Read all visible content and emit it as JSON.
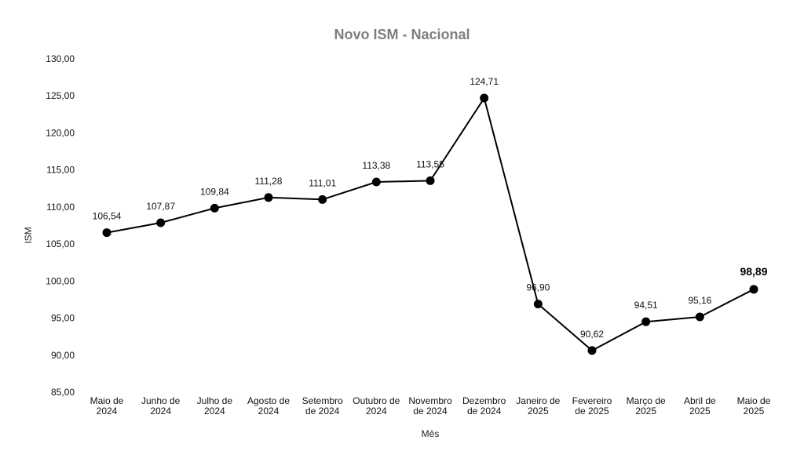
{
  "chart_data": {
    "type": "line",
    "title": "Novo ISM - Nacional",
    "xlabel": "Mês",
    "ylabel": "ISM",
    "ylim": [
      85,
      130
    ],
    "yticks": [
      "85,00",
      "90,00",
      "95,00",
      "100,00",
      "105,00",
      "110,00",
      "115,00",
      "120,00",
      "125,00",
      "130,00"
    ],
    "grid": false,
    "categories": [
      [
        "Maio de",
        "2024"
      ],
      [
        "Junho de",
        "2024"
      ],
      [
        "Julho de",
        "2024"
      ],
      [
        "Agosto de",
        "2024"
      ],
      [
        "Setembro",
        "de 2024"
      ],
      [
        "Outubro de",
        "2024"
      ],
      [
        "Novembro",
        "de 2024"
      ],
      [
        "Dezembro",
        "de 2024"
      ],
      [
        "Janeiro de",
        "2025"
      ],
      [
        "Fevereiro",
        "de 2025"
      ],
      [
        "Março de",
        "2025"
      ],
      [
        "Abril de",
        "2025"
      ],
      [
        "Maio de",
        "2025"
      ]
    ],
    "values": [
      106.54,
      107.87,
      109.84,
      111.28,
      111.01,
      113.38,
      113.55,
      124.71,
      96.9,
      90.62,
      94.51,
      95.16,
      98.89
    ],
    "value_labels": [
      "106,54",
      "107,87",
      "109,84",
      "111,28",
      "111,01",
      "113,38",
      "113,55",
      "124,71",
      "96,90",
      "90,62",
      "94,51",
      "95,16",
      "98,89"
    ],
    "highlight_last_label": true,
    "line_color": "#000000",
    "marker_color": "#000000",
    "title_color": "#7f7f7f"
  }
}
